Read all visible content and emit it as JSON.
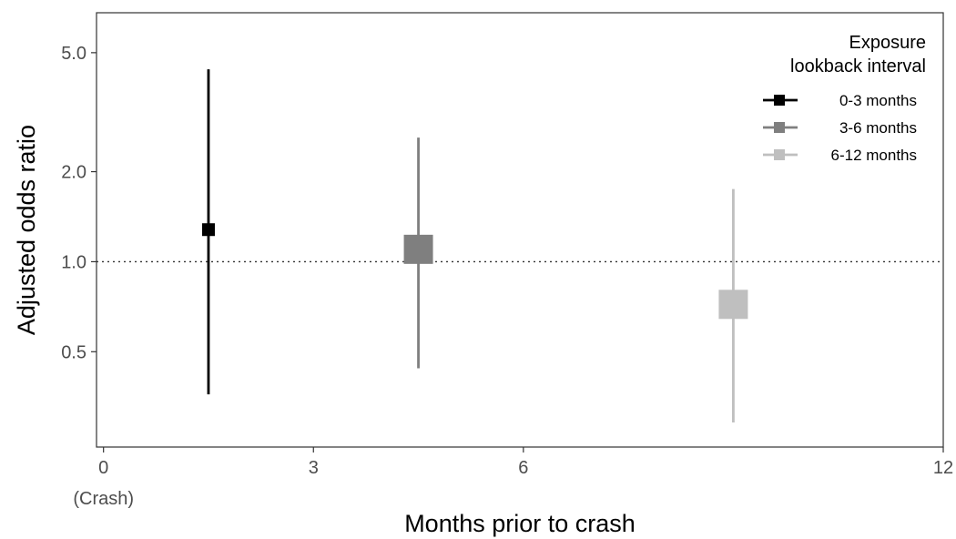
{
  "chart_data": {
    "type": "scatter",
    "title": "",
    "xlabel": "Months prior to crash",
    "ylabel": "Adjusted odds ratio",
    "y_scale": "log",
    "xlim": [
      -0.1,
      12
    ],
    "ylim": [
      0.24,
      6.8
    ],
    "x_ticks": [
      {
        "value": 0,
        "label": "0",
        "sublabel": "(Crash)"
      },
      {
        "value": 3,
        "label": "3",
        "sublabel": ""
      },
      {
        "value": 6,
        "label": "6",
        "sublabel": ""
      },
      {
        "value": 12,
        "label": "12",
        "sublabel": ""
      }
    ],
    "y_ticks": [
      {
        "value": 0.5,
        "label": "0.5"
      },
      {
        "value": 1.0,
        "label": "1.0"
      },
      {
        "value": 2.0,
        "label": "2.0"
      },
      {
        "value": 5.0,
        "label": "5.0"
      }
    ],
    "reference_line": {
      "y": 1.0,
      "style": "dotted"
    },
    "grid": false,
    "legend": {
      "title_line1": "Exposure",
      "title_line2": "lookback interval",
      "position": "top-right"
    },
    "series": [
      {
        "name": "0-3 months",
        "color": "#000000",
        "x": 1.5,
        "or": 1.28,
        "ci_low": 0.36,
        "ci_high": 4.4,
        "weight": "small"
      },
      {
        "name": "3-6 months",
        "color": "#7f7f7f",
        "x": 4.5,
        "or": 1.1,
        "ci_low": 0.44,
        "ci_high": 2.6,
        "weight": "medium"
      },
      {
        "name": "6-12 months",
        "color": "#bfbfbf",
        "x": 9.0,
        "or": 0.72,
        "ci_low": 0.29,
        "ci_high": 1.75,
        "weight": "medium"
      }
    ]
  }
}
